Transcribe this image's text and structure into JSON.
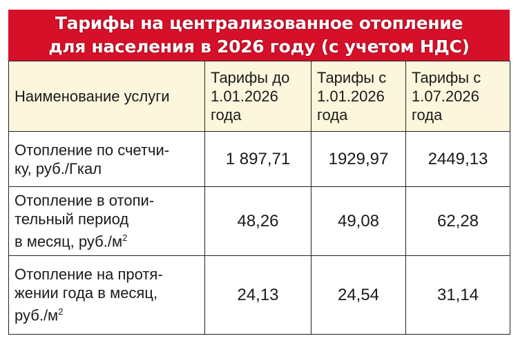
{
  "title": {
    "line1": "Тарифы на централизованное отопление",
    "line2": "для населения в 2026 году (с учетом НДС)"
  },
  "colors": {
    "title_bg": "#d7102a",
    "header_bg": "#fbf6dc"
  },
  "headers": [
    "Наименование услуги",
    "Тарифы до 1.01.2026 года",
    "Тарифы с 1.01.2026 года",
    "Тарифы с 1.07.2026 года"
  ],
  "rows": [
    {
      "name_lines": [
        "Отопление по счетчи-",
        "ку, руб./Гкал"
      ],
      "unit_sup": "",
      "values": [
        "1 897,71",
        "1929,97",
        "2449,13"
      ]
    },
    {
      "name_lines": [
        "Отопление в отопи-",
        "тельный период",
        "в месяц, руб./м"
      ],
      "unit_sup": "2",
      "values": [
        "48,26",
        "49,08",
        "62,28"
      ]
    },
    {
      "name_lines": [
        "Отопление на протя-",
        "жении года в месяц,",
        "руб./м"
      ],
      "unit_sup": "2",
      "values": [
        "24,13",
        "24,54",
        "31,14"
      ]
    }
  ]
}
